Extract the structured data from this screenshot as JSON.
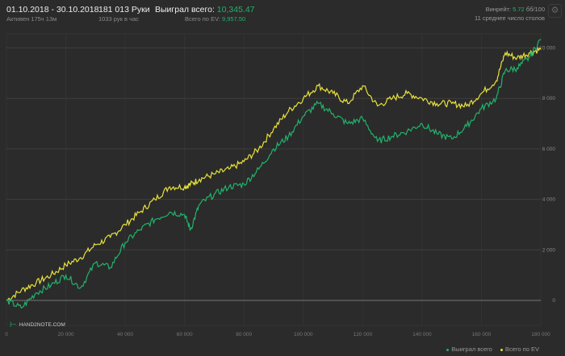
{
  "header": {
    "date_range": "01.10.2018 - 30.10.2018",
    "active": "Активен 175ч 13м",
    "hands": "181 013 Руки",
    "hands_per_hour": "1033 рук в час",
    "won_label": "Выиграл всего: ",
    "won_value": "10,345.47",
    "ev_label": "Всего по EV: ",
    "ev_value": "9,957.50",
    "winrate_label": "Винрейт: ",
    "winrate_value": "5.72",
    "winrate_extra": " бб/100",
    "tables": "11 среднее число столов",
    "settings_icon": "gear-icon"
  },
  "logo": {
    "text": "HAND2NOTE.COM"
  },
  "colors": {
    "won": "#21b36b",
    "ev": "#e8e23a",
    "background": "#2b2b2b",
    "grid": "#3a3a3a",
    "zero": "#777777"
  },
  "chart_data": {
    "type": "line",
    "xlim": [
      0,
      180000
    ],
    "ylim": [
      -1000,
      11000
    ],
    "x_ticks": [
      "0",
      "20 000",
      "40 000",
      "60 000",
      "80 000",
      "100 000",
      "120 000",
      "140 000",
      "160 000",
      "180 000"
    ],
    "x_tick_values": [
      0,
      20000,
      40000,
      60000,
      80000,
      100000,
      120000,
      140000,
      160000,
      180000
    ],
    "y_ticks": [
      "0",
      "2 000",
      "4 000",
      "6 000",
      "8 000",
      "10 000"
    ],
    "y_tick_values": [
      0,
      2000,
      4000,
      6000,
      8000,
      10000
    ],
    "grid": true,
    "legend": "bottom-right",
    "x": [
      0,
      5000,
      10000,
      15000,
      20000,
      25000,
      30000,
      35000,
      40000,
      45000,
      50000,
      55000,
      60000,
      62000,
      65000,
      70000,
      75000,
      80000,
      85000,
      90000,
      95000,
      100000,
      105000,
      110000,
      115000,
      120000,
      125000,
      130000,
      135000,
      140000,
      145000,
      150000,
      155000,
      160000,
      165000,
      168000,
      172000,
      176000,
      180000
    ],
    "series": [
      {
        "name": "Выиграл всего",
        "color": "#21b36b",
        "values": [
          0,
          -300,
          300,
          600,
          1000,
          500,
          1500,
          1300,
          2300,
          2800,
          3200,
          3500,
          3400,
          2800,
          3800,
          4200,
          4500,
          4600,
          5200,
          6000,
          6500,
          7300,
          7800,
          7400,
          7000,
          7200,
          6300,
          6500,
          6700,
          7000,
          6600,
          6400,
          6900,
          7600,
          8000,
          9100,
          9200,
          9600,
          10345
        ]
      },
      {
        "name": "Всего по EV",
        "color": "#e8e23a",
        "values": [
          0,
          400,
          700,
          1000,
          1400,
          1700,
          2200,
          2500,
          3000,
          3500,
          4000,
          4500,
          4500,
          4600,
          4800,
          5000,
          5200,
          5500,
          6000,
          6800,
          7500,
          8000,
          8500,
          8200,
          7800,
          8500,
          7700,
          8000,
          8200,
          8000,
          7800,
          7800,
          7700,
          8200,
          8700,
          9800,
          9600,
          9800,
          9957
        ]
      }
    ]
  }
}
